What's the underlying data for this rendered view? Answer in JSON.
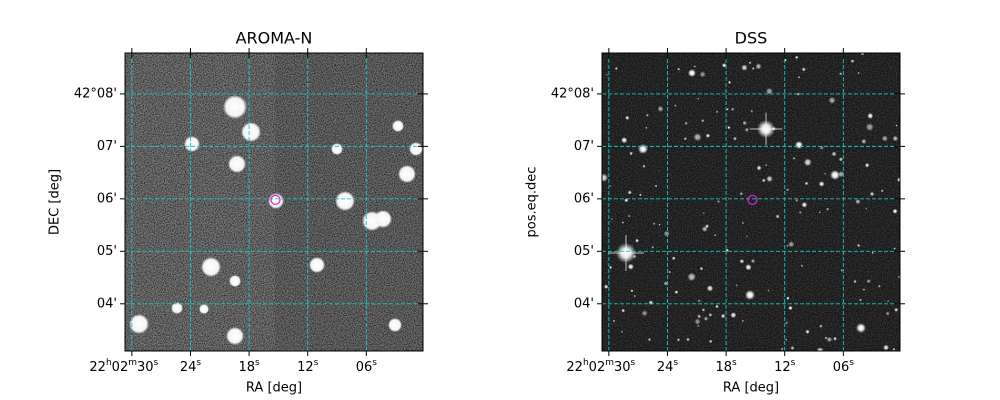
{
  "chart_data": [
    {
      "type": "image",
      "title": "AROMA-N",
      "xlabel": "RA [deg]",
      "ylabel": "DEC [deg]",
      "xlim": [
        30.7,
        0.2
      ],
      "ylim": [
        3.1,
        8.78
      ],
      "xticks": [
        {
          "value": 30,
          "label": "22h02m30s"
        },
        {
          "value": 24,
          "label": "24s"
        },
        {
          "value": 18,
          "label": "18s"
        },
        {
          "value": 12,
          "label": "12s"
        },
        {
          "value": 6,
          "label": "06s"
        }
      ],
      "yticks": [
        {
          "value": 8,
          "label": "42°08'"
        },
        {
          "value": 7,
          "label": "07'"
        },
        {
          "value": 6,
          "label": "06'"
        },
        {
          "value": 5,
          "label": "05'"
        },
        {
          "value": 4,
          "label": "04'"
        }
      ],
      "grid": true,
      "grid_color": "#19c8c8",
      "marker": {
        "x": 15.3,
        "y": 5.98,
        "color": "#e020e0"
      }
    },
    {
      "type": "image",
      "title": "DSS",
      "xlabel": "RA [deg]",
      "ylabel": "pos.eq.dec",
      "xlim": [
        30.7,
        0.2
      ],
      "ylim": [
        3.1,
        8.78
      ],
      "xticks": [
        {
          "value": 30,
          "label": "22h02m30s"
        },
        {
          "value": 24,
          "label": "24s"
        },
        {
          "value": 18,
          "label": "18s"
        },
        {
          "value": 12,
          "label": "12s"
        },
        {
          "value": 6,
          "label": "06s"
        }
      ],
      "yticks": [
        {
          "value": 8,
          "label": "42°08'"
        },
        {
          "value": 7,
          "label": "07'"
        },
        {
          "value": 6,
          "label": "06'"
        },
        {
          "value": 5,
          "label": "05'"
        },
        {
          "value": 4,
          "label": "04'"
        }
      ],
      "grid": true,
      "grid_color": "#19c8c8",
      "marker": {
        "x": 15.3,
        "y": 5.98,
        "color": "#e020e0"
      }
    }
  ]
}
